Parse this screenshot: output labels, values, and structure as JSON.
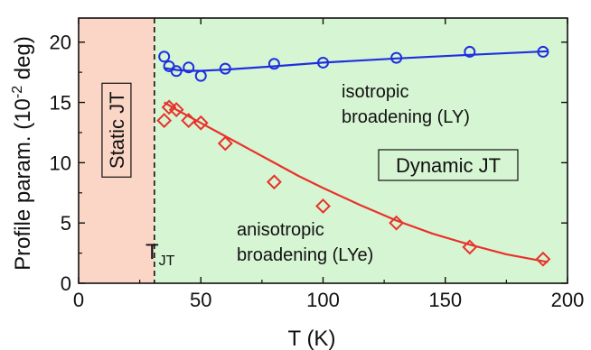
{
  "chart_data": {
    "type": "scatter",
    "xlabel": "T (K)",
    "ylabel_main": "Profile param. (10",
    "ylabel_exp": "-2",
    "ylabel_tail": " deg)",
    "xlim": [
      0,
      200
    ],
    "ylim": [
      0,
      22
    ],
    "xticks": [
      0,
      50,
      100,
      150,
      200
    ],
    "yticks": [
      0,
      5,
      10,
      15,
      20
    ],
    "grid": false,
    "regions": [
      {
        "label": "Static JT",
        "x_range": [
          0,
          31
        ],
        "color": "#fbd6c6"
      },
      {
        "label": "Dynamic JT",
        "x_range": [
          31,
          200
        ],
        "color": "#d6f5d3"
      }
    ],
    "transition": {
      "x": 31,
      "label_main": "T",
      "label_sub": "JT"
    },
    "series": [
      {
        "name": "isotropic broadening (LY)",
        "marker": "circle",
        "color": "#1f2fe0",
        "x": [
          35,
          37,
          40,
          45,
          50,
          60,
          80,
          100,
          130,
          160,
          190
        ],
        "y": [
          18.8,
          18.0,
          17.6,
          17.9,
          17.2,
          17.8,
          18.2,
          18.3,
          18.7,
          19.2,
          19.2
        ],
        "fit_x": [
          35,
          40,
          45,
          50,
          60,
          80,
          100,
          130,
          160,
          192
        ],
        "fit_y": [
          17.85,
          17.7,
          17.62,
          17.62,
          17.72,
          18.0,
          18.3,
          18.65,
          18.95,
          19.25
        ]
      },
      {
        "name": "anisotropic broadening (LYe)",
        "marker": "diamond",
        "color": "#e8322a",
        "x": [
          35,
          37,
          40,
          45,
          50,
          60,
          80,
          100,
          130,
          160,
          190
        ],
        "y": [
          13.5,
          14.6,
          14.4,
          13.5,
          13.3,
          11.6,
          8.4,
          6.4,
          5.0,
          3.0,
          2.0
        ],
        "fit_x": [
          35,
          40,
          45,
          50,
          60,
          70,
          80,
          90,
          100,
          115,
          130,
          145,
          160,
          175,
          192
        ],
        "fit_y": [
          15.0,
          14.4,
          13.85,
          13.3,
          12.2,
          11.1,
          10.0,
          8.9,
          7.9,
          6.5,
          5.2,
          4.1,
          3.2,
          2.4,
          1.75
        ]
      }
    ],
    "annotations": {
      "iso_line1": "isotropic",
      "iso_line2": "broadening (LY)",
      "aniso_line1": "anisotropic",
      "aniso_line2": "broadening (LYe)"
    }
  }
}
